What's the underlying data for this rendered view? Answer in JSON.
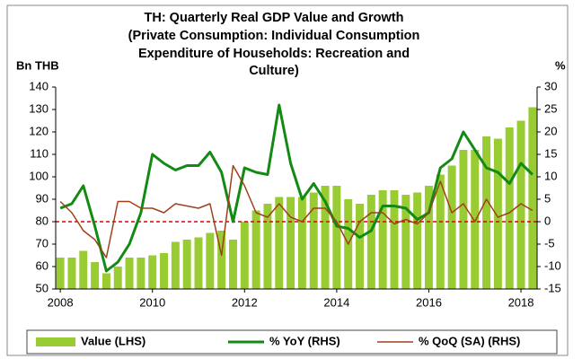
{
  "chart_data": {
    "type": "combo",
    "title": [
      "TH: Quarterly Real GDP Value and Growth",
      "(Private Consumption: Individual Consumption",
      "Expenditure of Households: Recreation and",
      "Culture)"
    ],
    "ylabel": "Bn THB",
    "y2label": "%",
    "x": [
      2008,
      2008.25,
      2008.5,
      2008.75,
      2009,
      2009.25,
      2009.5,
      2009.75,
      2010,
      2010.25,
      2010.5,
      2010.75,
      2011,
      2011.25,
      2011.5,
      2011.75,
      2012,
      2012.25,
      2012.5,
      2012.75,
      2013,
      2013.25,
      2013.5,
      2013.75,
      2014,
      2014.25,
      2014.5,
      2014.75,
      2015,
      2015.25,
      2015.5,
      2015.75,
      2016,
      2016.25,
      2016.5,
      2016.75,
      2017,
      2017.25,
      2017.5,
      2017.75,
      2018,
      2018.25
    ],
    "series": [
      {
        "name": "Value (LHS)",
        "type": "bar",
        "axis": "y",
        "color": "#99cc33",
        "values": [
          64,
          64,
          67,
          62,
          57,
          60,
          64,
          64,
          65,
          66,
          71,
          72,
          73,
          75,
          76,
          72,
          80,
          85,
          88,
          91,
          91,
          91,
          93,
          96,
          96,
          90,
          88,
          92,
          94,
          94,
          92,
          93,
          96,
          101,
          105,
          112,
          112,
          118,
          117,
          122,
          125,
          131
        ]
      },
      {
        "name": "% YoY (RHS)",
        "type": "line",
        "axis": "y2",
        "color": "#138a13",
        "values": [
          3,
          4,
          8,
          -1,
          -11,
          -9,
          -5,
          2,
          15,
          13,
          11.5,
          12.5,
          12.5,
          15.5,
          11,
          0,
          12,
          11,
          10.5,
          26,
          13,
          5,
          8.5,
          4.5,
          -1,
          -1.5,
          -3.5,
          -2,
          3.5,
          3.5,
          3,
          0.5,
          2,
          12,
          14,
          20,
          16,
          12,
          11,
          8.5,
          13,
          10.5
        ]
      },
      {
        "name": "% QoQ (SA) (RHS)",
        "type": "line",
        "axis": "y2",
        "color": "#a0401a",
        "values": [
          4.5,
          2,
          -2,
          -4,
          -8,
          4.5,
          4.5,
          3,
          3,
          2,
          4,
          3.5,
          3,
          4,
          -7.5,
          12.5,
          8,
          2,
          1,
          4,
          1,
          0,
          3,
          3,
          0,
          -5,
          0,
          2,
          2,
          -0.5,
          0.5,
          -0.5,
          2,
          9,
          2,
          4,
          0,
          5,
          1,
          2,
          4,
          2.5
        ]
      }
    ],
    "reference_line": {
      "axis": "y2",
      "value": 0,
      "color": "#e00000"
    },
    "xlim": [
      2007.9,
      2018.35
    ],
    "xticks": [
      2008,
      2010,
      2012,
      2014,
      2016,
      2018
    ],
    "ylim": [
      50,
      140
    ],
    "yticks": [
      50,
      60,
      70,
      80,
      90,
      100,
      110,
      120,
      130,
      140
    ],
    "y2lim": [
      -15,
      30
    ],
    "y2ticks": [
      -15,
      -10,
      -5,
      0,
      5,
      10,
      15,
      20,
      25,
      30
    ],
    "grid": false,
    "legend": "bottom"
  }
}
